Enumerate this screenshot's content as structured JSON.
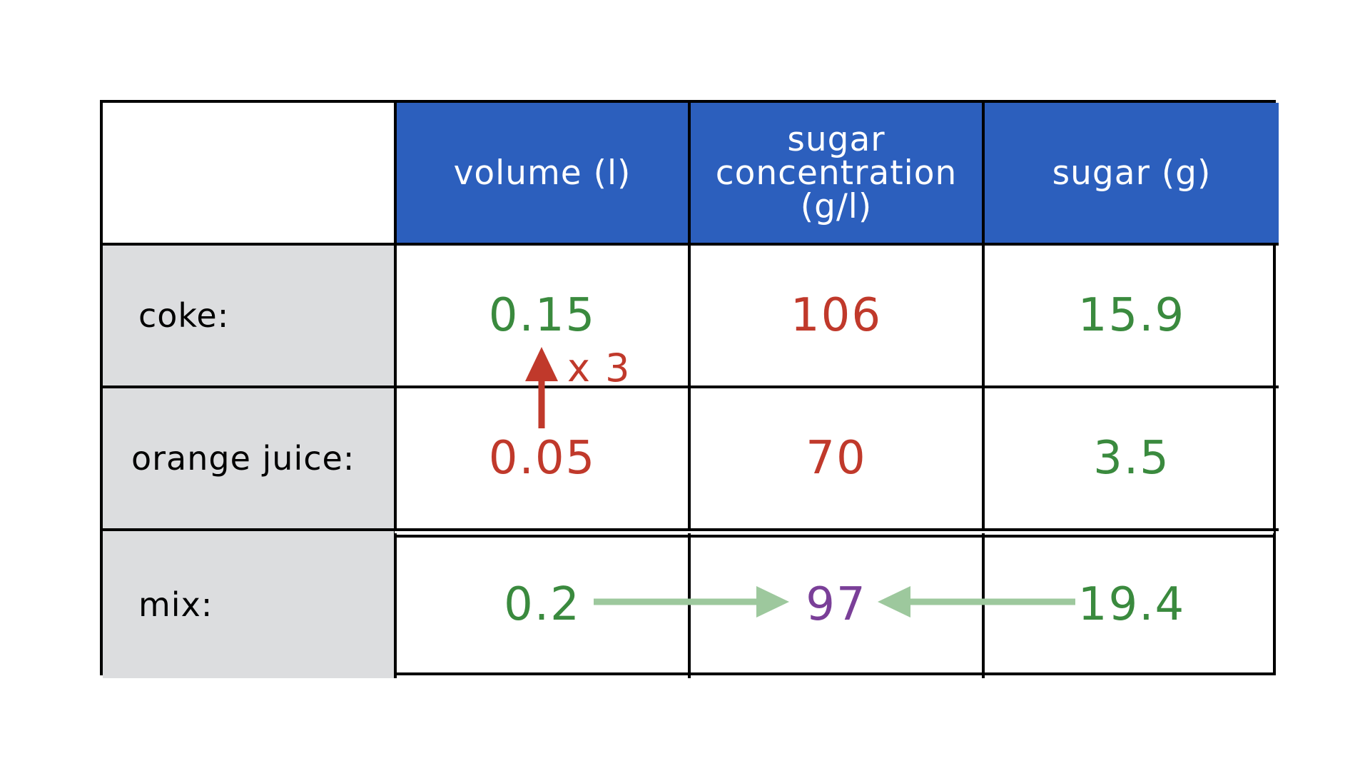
{
  "table": {
    "headers": [
      "",
      "volume (l)",
      "sugar concentration (g/l)",
      "sugar (g)"
    ],
    "header_lines": {
      "volume": [
        "volume (l)"
      ],
      "concentration": [
        "sugar",
        "concentration",
        "(g/l)"
      ],
      "sugar": [
        "sugar (g)"
      ]
    },
    "rows": [
      {
        "label": "coke:",
        "volume": "0.15",
        "concentration": "106",
        "sugar": "15.9"
      },
      {
        "label": "orange juice:",
        "volume": "0.05",
        "concentration": "70",
        "sugar": "3.5"
      },
      {
        "label": "mix:",
        "volume": "0.2",
        "concentration": "97",
        "sugar": "19.4"
      }
    ]
  },
  "annotations": {
    "multiplier": "x 3"
  },
  "colors": {
    "header_bg": "#2c5fbd",
    "row_label_bg": "#dcdddf",
    "green": "#3a8a3e",
    "red": "#c0392b",
    "purple": "#7a3f98",
    "arrow_green": "#9dc89d"
  }
}
